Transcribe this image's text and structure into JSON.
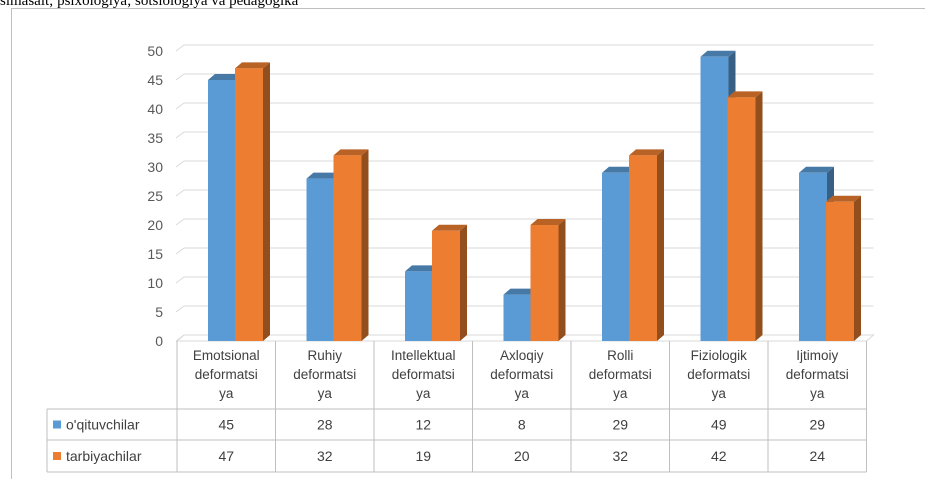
{
  "header": {
    "text": "simasalt;  psixologiya;  sotsiologiya  va  pedagogika"
  },
  "colors": {
    "series1": "#5b9bd5",
    "series2": "#ed7d31",
    "gridline": "#d9d9d9",
    "axis_text": "#595959"
  },
  "chart_data": {
    "type": "bar",
    "style": "3d-clustered-column-with-data-table",
    "categories": [
      [
        "Emotsional",
        "deformatsi",
        "ya"
      ],
      [
        "Ruhiy",
        "deformatsi",
        "ya"
      ],
      [
        "Intellektual",
        "deformatsi",
        "ya"
      ],
      [
        "Axloqiy",
        "deformatsi",
        "ya"
      ],
      [
        "Rolli",
        "deformatsi",
        "ya"
      ],
      [
        "Fiziologik",
        "deformatsi",
        "ya"
      ],
      [
        "Ijtimoiy",
        "deformatsi",
        "ya"
      ]
    ],
    "series": [
      {
        "name": "o'qituvchilar",
        "values": [
          45,
          28,
          12,
          8,
          29,
          49,
          29
        ]
      },
      {
        "name": "tarbiyachilar",
        "values": [
          47,
          32,
          19,
          20,
          32,
          42,
          24
        ]
      }
    ],
    "yticks": [
      0,
      5,
      10,
      15,
      20,
      25,
      30,
      35,
      40,
      45,
      50
    ],
    "ylim": [
      0,
      50
    ],
    "grid": true,
    "legend": "data-table-left",
    "title": "",
    "xlabel": "",
    "ylabel": ""
  }
}
